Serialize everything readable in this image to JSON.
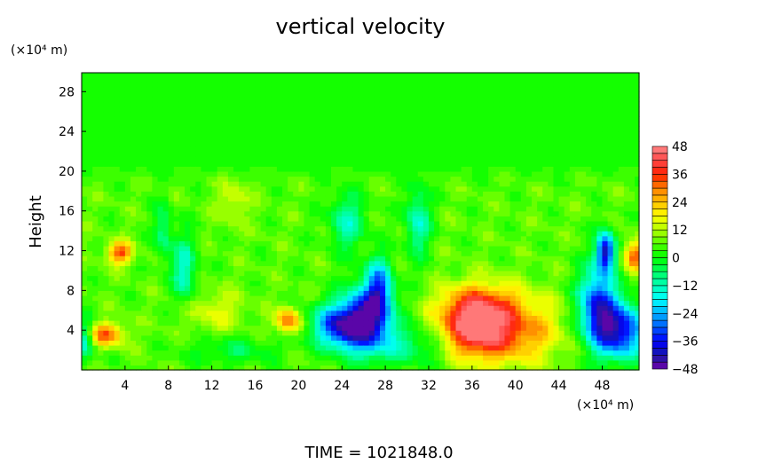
{
  "chart_data": {
    "type": "heatmap",
    "title": "vertical velocity",
    "ylabel": "Height",
    "y_unit": "(×10⁴ m)",
    "x_unit": "(×10⁴ m)",
    "footer": "TIME  =  1021848.0",
    "xlim": [
      0,
      51.4
    ],
    "ylim": [
      0,
      29.9
    ],
    "xticks": [
      4,
      8,
      12,
      16,
      20,
      24,
      28,
      32,
      36,
      40,
      44,
      48
    ],
    "yticks": [
      4,
      8,
      12,
      16,
      20,
      24,
      28
    ],
    "colorbar": {
      "min": -48,
      "max": 48,
      "step": 3,
      "ticks": [
        48,
        36,
        24,
        12,
        0,
        -12,
        -24,
        -36,
        -48
      ],
      "stops": [
        [
          -48,
          "#7000a8"
        ],
        [
          -42,
          "#1818a8"
        ],
        [
          -36,
          "#0000ff"
        ],
        [
          -27,
          "#0088ff"
        ],
        [
          -18,
          "#00ffff"
        ],
        [
          -9,
          "#00ff90"
        ],
        [
          0,
          "#00ff00"
        ],
        [
          6,
          "#50ff00"
        ],
        [
          12,
          "#b0ff00"
        ],
        [
          18,
          "#ffff00"
        ],
        [
          24,
          "#ffc000"
        ],
        [
          30,
          "#ff8000"
        ],
        [
          36,
          "#ff2000"
        ],
        [
          42,
          "#ff4848"
        ],
        [
          48,
          "#ff8888"
        ]
      ]
    },
    "background": {
      "lower_value": 6,
      "upper_value": 1,
      "transition_height": 20
    },
    "features": [
      {
        "x": 36,
        "y": 4.5,
        "sx": 2.2,
        "sy": 2.2,
        "amp": 38
      },
      {
        "x": 40,
        "y": 3.8,
        "sx": 3,
        "sy": 2.2,
        "amp": 22
      },
      {
        "x": 37.5,
        "y": 7,
        "sx": 3,
        "sy": 1.5,
        "amp": 12
      },
      {
        "x": 24,
        "y": 4.5,
        "sx": 1.8,
        "sy": 1.6,
        "amp": -44
      },
      {
        "x": 26.5,
        "y": 5.5,
        "sx": 1.5,
        "sy": 2.4,
        "amp": -40
      },
      {
        "x": 27.5,
        "y": 8.5,
        "sx": 0.8,
        "sy": 2,
        "amp": -28
      },
      {
        "x": 49.5,
        "y": 4,
        "sx": 1.8,
        "sy": 2,
        "amp": -46
      },
      {
        "x": 47.5,
        "y": 7,
        "sx": 1.2,
        "sy": 2.5,
        "amp": -36
      },
      {
        "x": 48.3,
        "y": 12,
        "sx": 0.6,
        "sy": 1.4,
        "amp": -46
      },
      {
        "x": 3.5,
        "y": 11.8,
        "sx": 0.8,
        "sy": 0.8,
        "amp": 28
      },
      {
        "x": 2.2,
        "y": 3.6,
        "sx": 1.2,
        "sy": 0.8,
        "amp": 26
      },
      {
        "x": 19,
        "y": 5,
        "sx": 0.8,
        "sy": 0.9,
        "amp": 26
      },
      {
        "x": 51,
        "y": 11.5,
        "sx": 0.7,
        "sy": 1,
        "amp": 28
      },
      {
        "x": 9.5,
        "y": 10,
        "sx": 0.8,
        "sy": 2.5,
        "amp": -20
      },
      {
        "x": 7.5,
        "y": 14,
        "sx": 0.6,
        "sy": 2,
        "amp": -15
      },
      {
        "x": 24.5,
        "y": 15,
        "sx": 1.2,
        "sy": 2,
        "amp": -18
      },
      {
        "x": 31,
        "y": 15,
        "sx": 0.8,
        "sy": 2.5,
        "amp": -20
      },
      {
        "x": 30,
        "y": 2.5,
        "sx": 3,
        "sy": 1.5,
        "amp": -14
      },
      {
        "x": 0.3,
        "y": 3,
        "sx": 0.6,
        "sy": 1.5,
        "amp": -20
      },
      {
        "x": 14,
        "y": 2,
        "sx": 3,
        "sy": 1,
        "amp": -10
      },
      {
        "x": 12,
        "y": 6,
        "sx": 2,
        "sy": 1.5,
        "amp": 10
      },
      {
        "x": 14,
        "y": 17,
        "sx": 1,
        "sy": 1.5,
        "amp": 10
      }
    ]
  }
}
